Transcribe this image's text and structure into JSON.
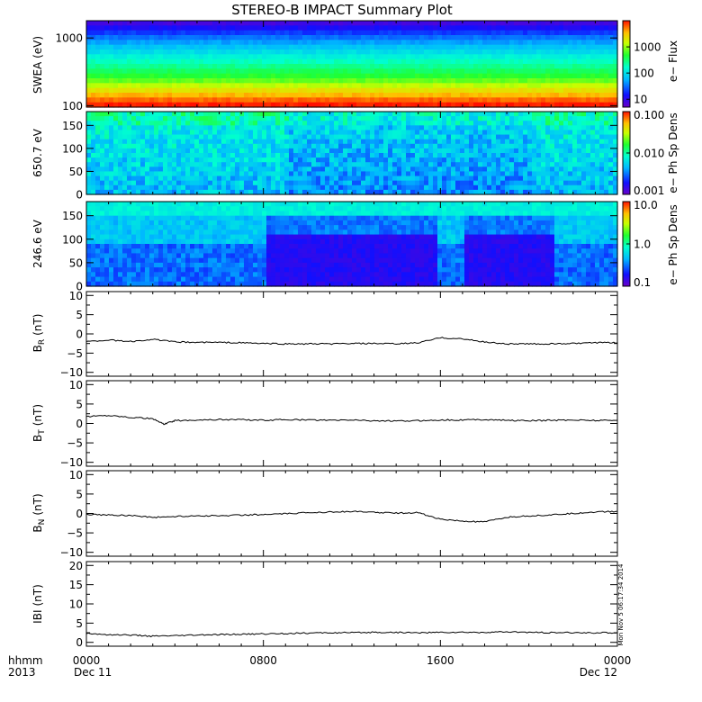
{
  "title": "STEREO-B IMPACT Summary Plot",
  "footer": {
    "hhmm_label": "hhmm",
    "year_label": "2013",
    "start_date": "Dec 11",
    "end_date": "Dec 12"
  },
  "timestamp": "Mon Nov  5 06:17:34 2014",
  "colors": {
    "line": "#000000",
    "frame": "#000000",
    "background": "#ffffff"
  },
  "chart_data": [
    {
      "type": "heatmap",
      "ylabel": "SWEA (eV)",
      "yscale": "log",
      "ylim": [
        95,
        1800
      ],
      "yticks": [
        100,
        1000
      ],
      "ytick_labels": [
        "100",
        "1000"
      ],
      "zlabel": "e− Flux",
      "zscale": "log",
      "zlim": [
        5,
        10000
      ],
      "cticks": [
        10,
        100,
        1000
      ],
      "ctick_labels": [
        "10",
        "100",
        "1000"
      ],
      "profile": [
        [
          100,
          1.0
        ],
        [
          150,
          0.84
        ],
        [
          250,
          0.62
        ],
        [
          400,
          0.5
        ],
        [
          600,
          0.4
        ],
        [
          900,
          0.28
        ],
        [
          1300,
          0.15
        ],
        [
          1800,
          0.03
        ]
      ]
    },
    {
      "type": "heatmap",
      "ylabel": "650.7 eV",
      "ylim": [
        0,
        180
      ],
      "yticks": [
        0,
        50,
        100,
        150
      ],
      "ytick_labels": [
        "0",
        "50",
        "100",
        "150"
      ],
      "zlabel": "e− Ph Sp Dens",
      "zscale": "log",
      "zlim": [
        0.001,
        0.1
      ],
      "cticks": [
        0.001,
        0.01,
        0.1
      ],
      "ctick_labels": [
        "0.001",
        "0.010",
        "0.100"
      ]
    },
    {
      "type": "heatmap",
      "ylabel": "246.6 eV",
      "ylim": [
        0,
        180
      ],
      "yticks": [
        0,
        50,
        100,
        150
      ],
      "ytick_labels": [
        "0",
        "50",
        "100",
        "150"
      ],
      "zlabel": "e− Ph Sp Dens",
      "zscale": "log",
      "zlim": [
        0.1,
        10
      ],
      "cticks": [
        0.1,
        1,
        10
      ],
      "ctick_labels": [
        "0.1",
        "1.0",
        "10.0"
      ]
    },
    {
      "type": "line",
      "ylabel": "B",
      "ylabel_sub": "R",
      "yunit": "(nT)",
      "ylim": [
        -11,
        11
      ],
      "yticks": [
        -10,
        -5,
        0,
        5,
        10
      ],
      "ytick_labels": [
        "−10",
        "−5",
        "0",
        "5",
        "10"
      ],
      "x_hours": [
        0,
        1,
        2,
        3,
        4,
        5,
        6,
        7,
        8,
        9,
        10,
        11,
        12,
        13,
        14,
        15,
        16,
        17,
        18,
        19,
        20,
        21,
        22,
        23,
        24
      ],
      "values": [
        -2.0,
        -1.6,
        -2.0,
        -1.4,
        -2.1,
        -2.2,
        -2.2,
        -2.3,
        -2.5,
        -2.6,
        -2.6,
        -2.6,
        -2.5,
        -2.5,
        -2.6,
        -2.3,
        -1.0,
        -1.3,
        -2.1,
        -2.6,
        -2.6,
        -2.6,
        -2.5,
        -2.3,
        -2.3
      ]
    },
    {
      "type": "line",
      "ylabel": "B",
      "ylabel_sub": "T",
      "yunit": "(nT)",
      "ylim": [
        -11,
        11
      ],
      "yticks": [
        -10,
        -5,
        0,
        5,
        10
      ],
      "ytick_labels": [
        "−10",
        "−5",
        "0",
        "5",
        "10"
      ],
      "x_hours": [
        0,
        1,
        2,
        3,
        3.5,
        4,
        5,
        6,
        7,
        8,
        9,
        10,
        11,
        12,
        13,
        14,
        15,
        16,
        17,
        18,
        19,
        20,
        21,
        22,
        23,
        24
      ],
      "values": [
        1.8,
        2.1,
        1.6,
        1.2,
        -0.2,
        0.7,
        0.9,
        1.0,
        1.0,
        0.8,
        1.0,
        0.9,
        0.8,
        0.9,
        0.7,
        0.6,
        0.7,
        0.9,
        0.9,
        1.0,
        0.8,
        0.7,
        0.8,
        0.9,
        0.8,
        0.8
      ]
    },
    {
      "type": "line",
      "ylabel": "B",
      "ylabel_sub": "N",
      "yunit": "(nT)",
      "ylim": [
        -11,
        11
      ],
      "yticks": [
        -10,
        -5,
        0,
        5,
        10
      ],
      "ytick_labels": [
        "−10",
        "−5",
        "0",
        "5",
        "10"
      ],
      "x_hours": [
        0,
        1,
        2,
        3,
        4,
        5,
        6,
        7,
        8,
        9,
        10,
        11,
        12,
        13,
        14,
        15,
        16,
        17,
        18,
        19,
        20,
        21,
        22,
        23,
        24
      ],
      "values": [
        -0.2,
        -0.4,
        -0.5,
        -1.0,
        -0.8,
        -0.6,
        -0.6,
        -0.4,
        -0.3,
        -0.1,
        0.2,
        0.4,
        0.5,
        0.3,
        0.1,
        0.2,
        -1.5,
        -2.0,
        -2.2,
        -1.0,
        -0.6,
        -0.4,
        0.0,
        0.4,
        0.5
      ]
    },
    {
      "type": "line",
      "ylabel": "IBI",
      "yunit": "(nT)",
      "ylim": [
        -1,
        21
      ],
      "yticks": [
        0,
        5,
        10,
        15,
        20
      ],
      "ytick_labels": [
        "0",
        "5",
        "10",
        "15",
        "20"
      ],
      "x_hours": [
        0,
        1,
        2,
        3,
        4,
        5,
        6,
        7,
        8,
        9,
        10,
        11,
        12,
        13,
        14,
        15,
        16,
        17,
        18,
        19,
        20,
        21,
        22,
        23,
        24
      ],
      "values": [
        2.3,
        2.0,
        1.9,
        1.6,
        1.7,
        1.9,
        2.0,
        2.1,
        2.2,
        2.3,
        2.4,
        2.5,
        2.5,
        2.6,
        2.6,
        2.5,
        2.6,
        2.6,
        2.6,
        2.7,
        2.6,
        2.5,
        2.5,
        2.5,
        2.5
      ]
    }
  ],
  "x_axis": {
    "range_hours": [
      0,
      24
    ],
    "major_ticks": [
      0,
      8,
      16,
      24
    ],
    "tick_labels": [
      "0000",
      "0800",
      "1600",
      "0000"
    ]
  }
}
